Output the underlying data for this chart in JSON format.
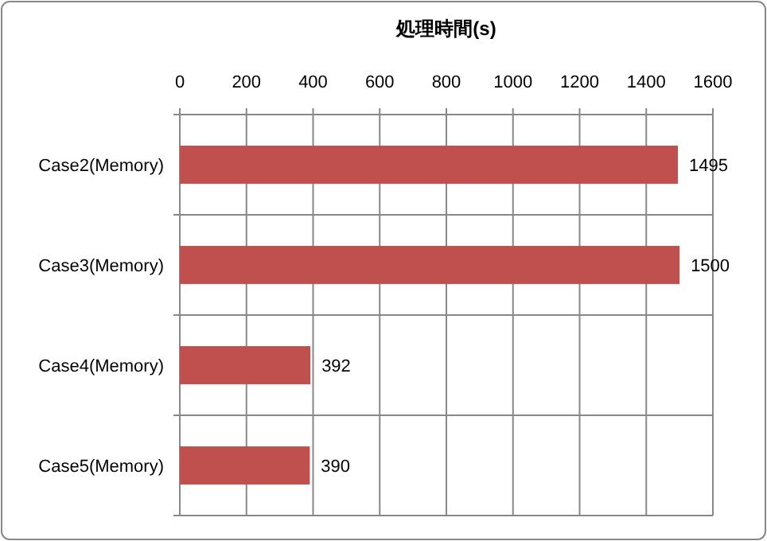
{
  "chart_data": {
    "type": "bar",
    "orientation": "horizontal",
    "title": "処理時間(s)",
    "categories": [
      "Case2(Memory)",
      "Case3(Memory)",
      "Case4(Memory)",
      "Case5(Memory)"
    ],
    "values": [
      1495,
      1500,
      392,
      390
    ],
    "color": "#c0504d",
    "xlim": [
      0,
      1600
    ],
    "xticks": [
      0,
      200,
      400,
      600,
      800,
      1000,
      1200,
      1400,
      1600
    ],
    "grid": true,
    "data_labels": true
  }
}
